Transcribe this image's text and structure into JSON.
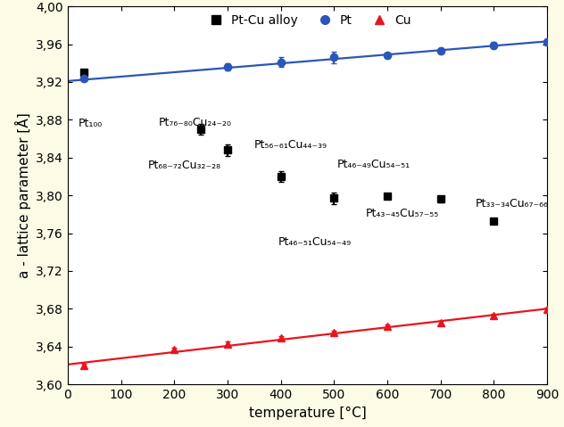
{
  "chart_data": {
    "type": "scatter",
    "xlabel": "temperature [°C]",
    "ylabel": "a - lattice parameter [Å]",
    "xlim": [
      0,
      900
    ],
    "xticks": [
      0,
      100,
      200,
      300,
      400,
      500,
      600,
      700,
      800,
      900
    ],
    "ylim": [
      3.6,
      4.0
    ],
    "yticks": [
      {
        "value": 3.6,
        "label": "3,60"
      },
      {
        "value": 3.64,
        "label": "3,64"
      },
      {
        "value": 3.68,
        "label": "3,68"
      },
      {
        "value": 3.72,
        "label": "3,72"
      },
      {
        "value": 3.76,
        "label": "3,76"
      },
      {
        "value": 3.8,
        "label": "3,80"
      },
      {
        "value": 3.84,
        "label": "3,84"
      },
      {
        "value": 3.88,
        "label": "3,88"
      },
      {
        "value": 3.92,
        "label": "3,92"
      },
      {
        "value": 3.96,
        "label": "3,96"
      },
      {
        "value": 4.0,
        "label": "4,00"
      }
    ],
    "legend": "upper center",
    "grid": false,
    "series": [
      {
        "name": "Pt-Cu alloy",
        "color": "#000000",
        "marker": "square",
        "x": [
          30,
          250,
          300,
          400,
          500,
          600,
          700,
          800
        ],
        "values": [
          3.93,
          3.87,
          3.848,
          3.82,
          3.797,
          3.799,
          3.796,
          3.773
        ],
        "errors": [
          0.003,
          0.006,
          0.006,
          0.006,
          0.006,
          0.003,
          0.003,
          0.003
        ]
      },
      {
        "name": "Pt",
        "color": "#2a56b8",
        "marker": "circle",
        "x": [
          30,
          300,
          400,
          500,
          600,
          700,
          800,
          900
        ],
        "values": [
          3.924,
          3.936,
          3.941,
          3.946,
          3.948,
          3.953,
          3.959,
          3.962
        ],
        "errors": [
          0.003,
          0.004,
          0.005,
          0.006,
          0.003,
          0.003,
          0.003,
          0.003
        ],
        "fit_x": [
          0,
          900
        ],
        "fit_values": [
          3.921,
          3.963
        ]
      },
      {
        "name": "Cu",
        "color": "#e8141e",
        "marker": "triangle",
        "x": [
          30,
          200,
          300,
          400,
          500,
          600,
          700,
          800,
          900
        ],
        "values": [
          3.62,
          3.637,
          3.643,
          3.649,
          3.655,
          3.661,
          3.665,
          3.673,
          3.679
        ],
        "errors": [
          0.002,
          0.002,
          0.002,
          0.002,
          0.002,
          0.002,
          0.002,
          0.002,
          0.002
        ],
        "fit_x": [
          0,
          900
        ],
        "fit_values": [
          3.621,
          3.68
        ]
      }
    ],
    "annotations": [
      {
        "text": "Pt₁₀₀"
      },
      {
        "text": "Pt₇₆₋₈₀Cu₂₄₋₂₀"
      },
      {
        "text": "Pt₆₈₋₇₂Cu₃₂₋₂₈"
      },
      {
        "text": "Pt₅₆₋₆₁Cu₄₄₋₃₉"
      },
      {
        "text": "Pt₄₆₋₄₉Cu₅₄₋₅₁"
      },
      {
        "text": "Pt₄₃₋₄₅Cu₅₇₋₅₅"
      },
      {
        "text": "Pt₃₃₋₃₄Cu₆₇₋₆₆"
      },
      {
        "text": "Pt₄₆₋₅₁Cu₅₄₋₄₉"
      }
    ]
  }
}
